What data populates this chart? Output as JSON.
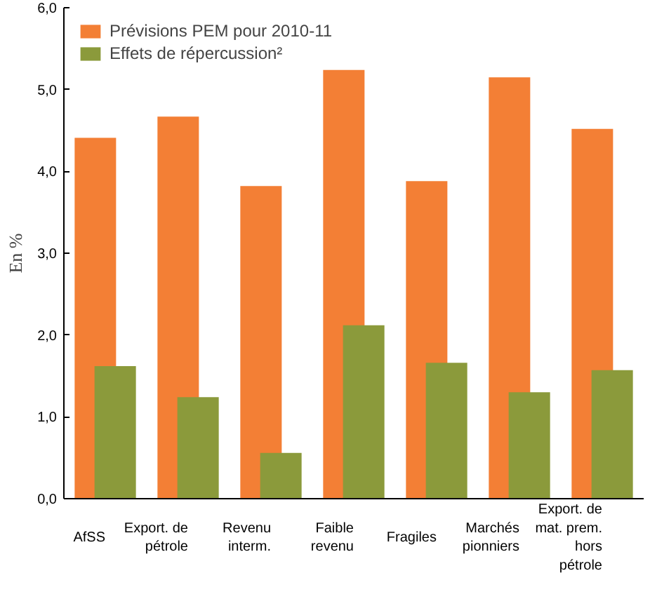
{
  "chart_data": {
    "type": "bar",
    "ylabel": "En %",
    "categories": [
      "AfSS",
      "Export. de\npétrole",
      "Revenu\ninterm.",
      "Faible\nrevenu",
      "Fragiles",
      "Marchés\npionniers",
      "Export. de\nmat. prem.\nhors\npétrole"
    ],
    "series": [
      {
        "name": "Prévisions PEM pour 2010-11",
        "color": "#f37f35",
        "values": [
          4.41,
          4.67,
          3.82,
          5.24,
          3.88,
          5.15,
          4.52
        ]
      },
      {
        "name": "Effets de répercussion²",
        "color": "#8b9a3b",
        "values": [
          1.62,
          1.24,
          0.56,
          2.12,
          1.66,
          1.3,
          1.57
        ]
      }
    ],
    "ylim": [
      0,
      6
    ],
    "yticks": [
      {
        "value": 0,
        "label": "0,0"
      },
      {
        "value": 1,
        "label": "1,0"
      },
      {
        "value": 2,
        "label": "2,0"
      },
      {
        "value": 3,
        "label": "3,0"
      },
      {
        "value": 4,
        "label": "4,0"
      },
      {
        "value": 5,
        "label": "5,0"
      },
      {
        "value": 6,
        "label": "6,0"
      }
    ],
    "legend": "top left",
    "grid": false
  }
}
